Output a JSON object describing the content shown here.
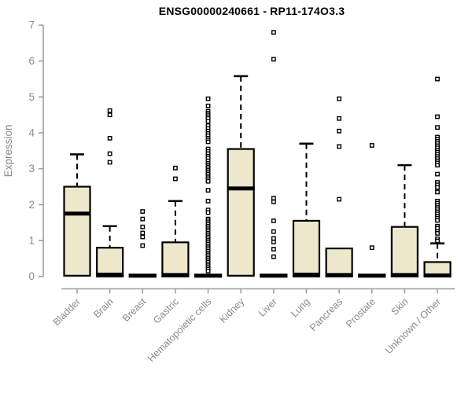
{
  "chart_data": {
    "type": "boxplot",
    "title": "ENSG00000240661 - RP11-174O3.3",
    "ylabel": "Expression",
    "xlabel": "",
    "ylim": [
      0,
      7
    ],
    "yticks": [
      0,
      1,
      2,
      3,
      4,
      5,
      6,
      7
    ],
    "grid": false,
    "legend": "none",
    "box_fill": "#ede8cc",
    "box_stroke": "#000000",
    "axis_color": "#9b9b9b",
    "label_color": "#8a8a8a",
    "categories": [
      {
        "label": "Bladder",
        "q1": 0.02,
        "median": 1.75,
        "q3": 2.5,
        "whisker_low": 0.02,
        "whisker_high": 3.4,
        "outliers": []
      },
      {
        "label": "Brain",
        "q1": 0,
        "median": 0.05,
        "q3": 0.8,
        "whisker_low": 0,
        "whisker_high": 1.4,
        "outliers": [
          4.62,
          4.5,
          3.85,
          3.42,
          3.18
        ]
      },
      {
        "label": "Breast",
        "q1": 0,
        "median": 0.02,
        "q3": 0.05,
        "whisker_low": 0,
        "whisker_high": 0.05,
        "outliers": [
          1.81,
          1.6,
          1.38,
          1.21,
          1.1,
          0.86
        ]
      },
      {
        "label": "Gastric",
        "q1": 0,
        "median": 0.04,
        "q3": 0.95,
        "whisker_low": 0,
        "whisker_high": 2.1,
        "outliers": [
          3.02,
          2.72
        ]
      },
      {
        "label": "Hematopoietic cells",
        "q1": 0,
        "median": 0.02,
        "q3": 0.05,
        "whisker_low": 0,
        "whisker_high": 0.05,
        "outliers": [
          4.95,
          4.75,
          4.6,
          4.55,
          4.5,
          4.45,
          4.4,
          4.32,
          4.2,
          4.12,
          4.05,
          3.98,
          3.92,
          3.85,
          3.8,
          3.75,
          3.55,
          3.48,
          3.42,
          3.35,
          3.3,
          3.22,
          3.15,
          3.1,
          3.05,
          3.0,
          2.95,
          2.9,
          2.85,
          2.8,
          2.75,
          2.7,
          2.65,
          2.4,
          2.1,
          1.85,
          1.78,
          1.6,
          1.55,
          1.5,
          1.45,
          1.4,
          1.35,
          1.3,
          1.25,
          1.2,
          1.15,
          1.1,
          1.05,
          1.0,
          0.95,
          0.9,
          0.85,
          0.8,
          0.75,
          0.7,
          0.65,
          0.6,
          0.55,
          0.5,
          0.45,
          0.4,
          0.35,
          0.3,
          0.25,
          0.2,
          0.15
        ]
      },
      {
        "label": "Kidney",
        "q1": 0.02,
        "median": 2.45,
        "q3": 3.55,
        "whisker_low": 0.02,
        "whisker_high": 5.58,
        "outliers": []
      },
      {
        "label": "Liver",
        "q1": 0,
        "median": 0.02,
        "q3": 0.05,
        "whisker_low": 0,
        "whisker_high": 0.05,
        "outliers": [
          6.8,
          6.05,
          2.18,
          2.08,
          1.55,
          1.25,
          1.06,
          0.96,
          0.76,
          0.55
        ]
      },
      {
        "label": "Lung",
        "q1": 0,
        "median": 0.05,
        "q3": 1.55,
        "whisker_low": 0,
        "whisker_high": 3.7,
        "outliers": []
      },
      {
        "label": "Pancreas",
        "q1": 0,
        "median": 0.04,
        "q3": 0.78,
        "whisker_low": 0,
        "whisker_high": 0.78,
        "outliers": [
          4.95,
          4.4,
          4.05,
          3.62,
          2.15
        ]
      },
      {
        "label": "Prostate",
        "q1": 0,
        "median": 0.02,
        "q3": 0.05,
        "whisker_low": 0,
        "whisker_high": 0.05,
        "outliers": [
          3.65,
          0.8
        ]
      },
      {
        "label": "Skin",
        "q1": 0,
        "median": 0.04,
        "q3": 1.38,
        "whisker_low": 0,
        "whisker_high": 3.1,
        "outliers": []
      },
      {
        "label": "Unknown / Other",
        "q1": 0,
        "median": 0.03,
        "q3": 0.4,
        "whisker_low": 0,
        "whisker_high": 0.92,
        "outliers": [
          5.5,
          4.45,
          4.15,
          3.88,
          3.82,
          3.76,
          3.7,
          3.64,
          3.58,
          3.52,
          3.46,
          3.4,
          3.34,
          3.28,
          3.22,
          3.16,
          3.1,
          2.85,
          2.62,
          2.55,
          2.48,
          2.35,
          2.1,
          2.04,
          1.98,
          1.92,
          1.86,
          1.8,
          1.74,
          1.68,
          1.62,
          1.56,
          1.4,
          1.34,
          1.25,
          1.2,
          1.05,
          0.99
        ]
      }
    ]
  }
}
